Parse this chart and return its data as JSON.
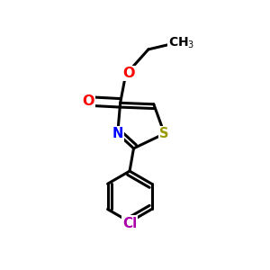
{
  "background_color": "#ffffff",
  "atom_colors": {
    "O": "#ff0000",
    "N": "#0000ff",
    "S": "#999900",
    "Cl": "#aa00aa",
    "C": "#000000"
  },
  "bond_color": "#000000",
  "bond_width": 2.2,
  "font_size": 10.5,
  "fig_size": [
    3.0,
    3.0
  ],
  "dpi": 100
}
